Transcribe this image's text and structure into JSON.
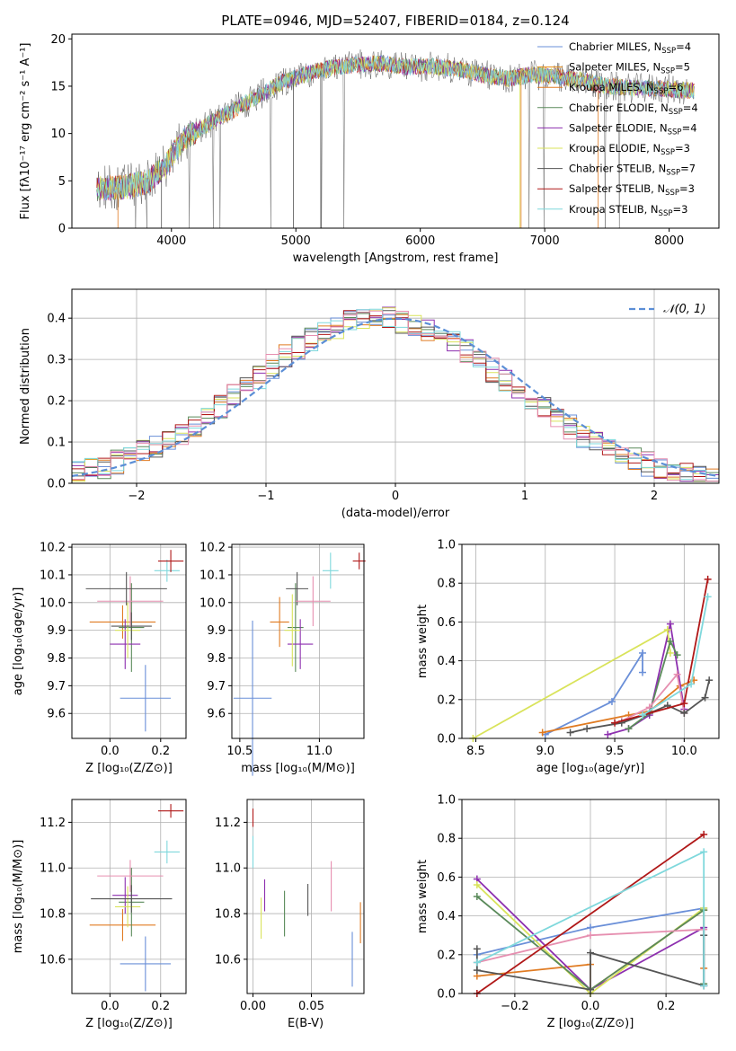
{
  "colors": {
    "Chabrier MILES": "#6a8fd8",
    "Salpeter MILES": "#e6870e",
    "Kroupa MILES": "#e07b22",
    "Chabrier ELODIE": "#5a8a5a",
    "Salpeter ELODIE": "#8d2faf",
    "Kroupa ELODIE": "#d9e35a",
    "Chabrier STELIB": "#555555",
    "Salpeter STELIB": "#b01818",
    "Kroupa STELIB": "#7fd8dc",
    "pink": "#e68fb0",
    "normal": "#5b8ed6"
  },
  "chart_data": [
    {
      "id": "spectrum",
      "type": "line",
      "title": "PLATE=0946, MJD=52407, FIBERID=0184, z=0.124",
      "xlabel": "wavelength [Angstrom, rest frame]",
      "ylabel": "Flux [fλ10⁻¹⁷ erg cm⁻² s⁻¹ A⁻¹]",
      "xlim": [
        3200,
        8400
      ],
      "ylim": [
        0,
        20.5
      ],
      "xticks": [
        4000,
        5000,
        6000,
        7000,
        8000
      ],
      "yticks": [
        0,
        5,
        10,
        15,
        20
      ],
      "grid": false,
      "legend_position": "top-right",
      "legend": [
        {
          "base": "Chabrier MILES, N",
          "sub": "SSP",
          "rest": "=4"
        },
        {
          "base": "Salpeter MILES, N",
          "sub": "SSP",
          "rest": "=5"
        },
        {
          "base": "Kroupa MILES, N",
          "sub": "SSP",
          "rest": "=6"
        },
        {
          "base": "Chabrier ELODIE, N",
          "sub": "SSP",
          "rest": "=4"
        },
        {
          "base": "Salpeter ELODIE, N",
          "sub": "SSP",
          "rest": "=4"
        },
        {
          "base": "Kroupa ELODIE, N",
          "sub": "SSP",
          "rest": "=3"
        },
        {
          "base": "Chabrier STELIB, N",
          "sub": "SSP",
          "rest": "=7"
        },
        {
          "base": "Salpeter STELIB, N",
          "sub": "SSP",
          "rest": "=3"
        },
        {
          "base": "Kroupa STELIB, N",
          "sub": "SSP",
          "rest": "=3"
        }
      ],
      "continuum": {
        "x": [
          3400,
          3600,
          3800,
          3950,
          4100,
          4300,
          4500,
          4700,
          4900,
          5100,
          5300,
          5500,
          5700,
          5900,
          6100,
          6300,
          6500,
          6700,
          6900,
          7100,
          7300,
          7500,
          7700,
          7900,
          8100,
          8200
        ],
        "y": [
          4.2,
          4.3,
          4.8,
          6.5,
          9.5,
          11.0,
          12.5,
          14.0,
          15.5,
          16.3,
          17.0,
          17.3,
          17.4,
          17.0,
          17.1,
          16.8,
          16.2,
          15.8,
          16.2,
          16.0,
          15.6,
          15.0,
          14.8,
          14.8,
          14.6,
          14.5
        ]
      }
    },
    {
      "id": "residuals",
      "type": "histogram",
      "xlabel": "(data-model)/error",
      "ylabel": "Normed distribution",
      "xlim": [
        -2.5,
        2.5
      ],
      "ylim": [
        0,
        0.47
      ],
      "xticks": [
        -2,
        -1,
        0,
        1,
        2
      ],
      "yticks": [
        0.0,
        0.1,
        0.2,
        0.3,
        0.4
      ],
      "grid": true,
      "legend": "𝒩(0, 1)",
      "legend_position": "top-right",
      "bin_width": 0.1
    },
    {
      "id": "age-vs-Z",
      "type": "errorbar",
      "xlabel": "Z [log₁₀(Z/Z⊙)]",
      "ylabel": "age  [log₁₀(age/yr)]",
      "xlim": [
        -0.15,
        0.3
      ],
      "ylim": [
        9.51,
        10.21
      ],
      "xticks": [
        0.0,
        0.2
      ],
      "yticks": [
        9.6,
        9.7,
        9.8,
        9.9,
        10.0,
        10.1,
        10.2
      ],
      "grid": true,
      "points": [
        {
          "c": "Chabrier MILES",
          "x": 0.14,
          "xe": 0.1,
          "y": 9.655,
          "ye": 0.12
        },
        {
          "c": "Kroupa MILES",
          "x": 0.05,
          "xe": 0.13,
          "y": 9.93,
          "ye": 0.06
        },
        {
          "c": "Chabrier ELODIE",
          "x": 0.085,
          "xe": 0.05,
          "y": 9.91,
          "ye": 0.16
        },
        {
          "c": "Salpeter ELODIE",
          "x": 0.06,
          "xe": 0.06,
          "y": 9.85,
          "ye": 0.09
        },
        {
          "c": "Kroupa ELODIE",
          "x": 0.07,
          "xe": 0.05,
          "y": 9.9,
          "ye": 0.1
        },
        {
          "c": "Chabrier STELIB",
          "x": 0.085,
          "xe": 0.08,
          "y": 9.915,
          "ye": 0.05
        },
        {
          "c": "pink",
          "x": 0.08,
          "xe": 0.13,
          "y": 10.005,
          "ye": 0.09
        },
        {
          "c": "Chabrier STELIB",
          "x": 0.065,
          "xe": 0.16,
          "y": 10.05,
          "ye": 0.06
        },
        {
          "c": "Kroupa STELIB",
          "x": 0.225,
          "xe": 0.05,
          "y": 10.115,
          "ye": 0.04
        },
        {
          "c": "Salpeter STELIB",
          "x": 0.24,
          "xe": 0.05,
          "y": 10.15,
          "ye": 0.04
        }
      ]
    },
    {
      "id": "age-vs-mass",
      "type": "errorbar",
      "xlabel": "mass [log₁₀(M/M⊙)]",
      "ylabel": "",
      "xlim": [
        10.45,
        11.28
      ],
      "ylim": [
        9.51,
        10.21
      ],
      "xticks": [
        10.5,
        11.0
      ],
      "yticks": [
        9.6,
        9.7,
        9.8,
        9.9,
        10.0,
        10.1,
        10.2
      ],
      "grid": true,
      "points": [
        {
          "c": "Chabrier MILES",
          "x": 10.58,
          "xe": 0.12,
          "y": 9.655,
          "ye": 0.28
        },
        {
          "c": "Kroupa MILES",
          "x": 10.75,
          "xe": 0.06,
          "y": 9.93,
          "ye": 0.09
        },
        {
          "c": "Chabrier ELODIE",
          "x": 10.85,
          "xe": 0.05,
          "y": 9.91,
          "ye": 0.16
        },
        {
          "c": "Salpeter ELODIE",
          "x": 10.88,
          "xe": 0.08,
          "y": 9.85,
          "ye": 0.09
        },
        {
          "c": "Kroupa ELODIE",
          "x": 10.83,
          "xe": 0.05,
          "y": 9.9,
          "ye": 0.13
        },
        {
          "c": "Chabrier STELIB",
          "x": 10.86,
          "xe": 0.07,
          "y": 10.05,
          "ye": 0.06
        },
        {
          "c": "pink",
          "x": 10.96,
          "xe": 0.11,
          "y": 10.005,
          "ye": 0.09
        },
        {
          "c": "Kroupa STELIB",
          "x": 11.07,
          "xe": 0.05,
          "y": 10.115,
          "ye": 0.065
        },
        {
          "c": "Salpeter STELIB",
          "x": 11.25,
          "xe": 0.04,
          "y": 10.15,
          "ye": 0.03
        }
      ]
    },
    {
      "id": "weight-vs-age",
      "type": "line",
      "xlabel": "age  [log₁₀(age/yr)]",
      "ylabel": "mass weight",
      "xlim": [
        8.4,
        10.25
      ],
      "ylim": [
        0.0,
        1.0
      ],
      "xticks": [
        8.5,
        9.0,
        9.5,
        10.0
      ],
      "yticks": [
        0.0,
        0.2,
        0.4,
        0.6,
        0.8,
        1.0
      ],
      "grid": true,
      "series": [
        {
          "c": "Chabrier MILES",
          "x": [
            9.0,
            9.48,
            9.7,
            9.7
          ],
          "y": [
            0.02,
            0.19,
            0.44,
            0.34
          ]
        },
        {
          "c": "Kroupa MILES",
          "x": [
            8.98,
            9.6,
            9.75,
            9.97,
            10.07
          ],
          "y": [
            0.03,
            0.12,
            0.14,
            0.27,
            0.3
          ]
        },
        {
          "c": "Salpeter ELODIE",
          "x": [
            9.45,
            9.6,
            9.75,
            9.9,
            10.0
          ],
          "y": [
            0.02,
            0.05,
            0.12,
            0.59,
            0.15
          ]
        },
        {
          "c": "Kroupa ELODIE",
          "x": [
            8.48,
            9.88,
            9.9
          ],
          "y": [
            0.0,
            0.56,
            0.44
          ]
        },
        {
          "c": "Chabrier ELODIE",
          "x": [
            9.6,
            9.75,
            9.9,
            9.95
          ],
          "y": [
            0.05,
            0.13,
            0.5,
            0.43
          ]
        },
        {
          "c": "pink",
          "x": [
            9.55,
            9.75,
            9.95,
            10.0
          ],
          "y": [
            0.09,
            0.16,
            0.33,
            0.13
          ]
        },
        {
          "c": "Chabrier STELIB",
          "x": [
            9.18,
            9.3,
            9.55,
            9.75,
            9.88,
            10.0,
            10.15,
            10.18
          ],
          "y": [
            0.03,
            0.05,
            0.08,
            0.13,
            0.17,
            0.13,
            0.21,
            0.3
          ]
        },
        {
          "c": "Salpeter STELIB",
          "x": [
            9.5,
            10.0,
            10.17
          ],
          "y": [
            0.08,
            0.18,
            0.82
          ]
        },
        {
          "c": "Kroupa STELIB",
          "x": [
            9.7,
            10.05,
            10.17
          ],
          "y": [
            0.12,
            0.28,
            0.73
          ]
        }
      ]
    },
    {
      "id": "mass-vs-Z",
      "type": "errorbar",
      "xlabel": "Z [log₁₀(Z/Z⊙)]",
      "ylabel": "mass [log₁₀(M/M⊙)]",
      "xlim": [
        -0.15,
        0.3
      ],
      "ylim": [
        10.45,
        11.3
      ],
      "xticks": [
        0.0,
        0.2
      ],
      "yticks": [
        10.6,
        10.8,
        11.0,
        11.2
      ],
      "grid": true,
      "points": [
        {
          "c": "Chabrier MILES",
          "x": 0.14,
          "xe": 0.1,
          "y": 10.58,
          "ye": 0.12
        },
        {
          "c": "Kroupa MILES",
          "x": 0.05,
          "xe": 0.13,
          "y": 10.75,
          "ye": 0.07
        },
        {
          "c": "Chabrier ELODIE",
          "x": 0.085,
          "xe": 0.05,
          "y": 10.85,
          "ye": 0.15
        },
        {
          "c": "Salpeter ELODIE",
          "x": 0.06,
          "xe": 0.05,
          "y": 10.88,
          "ye": 0.08
        },
        {
          "c": "Kroupa ELODIE",
          "x": 0.07,
          "xe": 0.05,
          "y": 10.83,
          "ye": 0.09
        },
        {
          "c": "Chabrier STELIB",
          "x": 0.085,
          "xe": 0.16,
          "y": 10.865,
          "ye": 0.06
        },
        {
          "c": "pink",
          "x": 0.08,
          "xe": 0.13,
          "y": 10.965,
          "ye": 0.07
        },
        {
          "c": "Kroupa STELIB",
          "x": 0.225,
          "xe": 0.05,
          "y": 11.07,
          "ye": 0.05
        },
        {
          "c": "Salpeter STELIB",
          "x": 0.24,
          "xe": 0.05,
          "y": 11.25,
          "ye": 0.03
        }
      ]
    },
    {
      "id": "mass-vs-ebv",
      "type": "errorbar",
      "xlabel": "E(B-V)",
      "ylabel": "",
      "xlim": [
        -0.005,
        0.095
      ],
      "ylim": [
        10.45,
        11.3
      ],
      "xticks": [
        0.0,
        0.05
      ],
      "yticks": [
        10.6,
        10.8,
        11.0,
        11.2
      ],
      "grid": true,
      "points": [
        {
          "c": "Chabrier MILES",
          "x": 0.085,
          "xe": 0,
          "y": 10.6,
          "ye": 0.12
        },
        {
          "c": "Kroupa MILES",
          "x": 0.092,
          "xe": 0,
          "y": 10.76,
          "ye": 0.09
        },
        {
          "c": "pink",
          "x": 0.067,
          "xe": 0,
          "y": 10.92,
          "ye": 0.11
        },
        {
          "c": "Chabrier STELIB",
          "x": 0.047,
          "xe": 0,
          "y": 10.86,
          "ye": 0.07
        },
        {
          "c": "Chabrier ELODIE",
          "x": 0.027,
          "xe": 0,
          "y": 10.8,
          "ye": 0.1
        },
        {
          "c": "Salpeter ELODIE",
          "x": 0.01,
          "xe": 0,
          "y": 10.88,
          "ye": 0.07
        },
        {
          "c": "Kroupa ELODIE",
          "x": 0.007,
          "xe": 0,
          "y": 10.78,
          "ye": 0.09
        },
        {
          "c": "Kroupa STELIB",
          "x": 0.0,
          "xe": 0,
          "y": 11.07,
          "ye": 0.07
        },
        {
          "c": "Salpeter STELIB",
          "x": 0.0,
          "xe": 0,
          "y": 11.22,
          "ye": 0.04
        }
      ]
    },
    {
      "id": "weight-vs-Z",
      "type": "line",
      "xlabel": "Z [log₁₀(Z/Z⊙)]",
      "ylabel": "mass weight",
      "xlim": [
        -0.34,
        0.34
      ],
      "ylim": [
        0.0,
        1.0
      ],
      "xticks": [
        -0.2,
        0.0,
        0.2
      ],
      "yticks": [
        0.0,
        0.2,
        0.4,
        0.6,
        0.8,
        1.0
      ],
      "grid": true,
      "series": [
        {
          "c": "Chabrier MILES",
          "x": [
            -0.3,
            0.0,
            0.3
          ],
          "y": [
            0.2,
            0.34,
            0.44
          ]
        },
        {
          "c": "Kroupa MILES",
          "x": [
            -0.3,
            0.0,
            0.0,
            0.3,
            0.3
          ],
          "y": [
            0.09,
            0.15,
            0.02,
            0.43,
            0.13
          ]
        },
        {
          "c": "Salpeter ELODIE",
          "x": [
            -0.3,
            0.0,
            0.3,
            0.3
          ],
          "y": [
            0.59,
            0.02,
            0.34,
            0.04
          ]
        },
        {
          "c": "Kroupa ELODIE",
          "x": [
            -0.3,
            0.0,
            0.3
          ],
          "y": [
            0.56,
            0.0,
            0.44
          ]
        },
        {
          "c": "Chabrier ELODIE",
          "x": [
            -0.3,
            0.0,
            0.3,
            0.3
          ],
          "y": [
            0.5,
            0.02,
            0.43,
            0.05
          ]
        },
        {
          "c": "pink",
          "x": [
            -0.3,
            0.0,
            0.3
          ],
          "y": [
            0.16,
            0.3,
            0.33
          ]
        },
        {
          "c": "Chabrier STELIB",
          "x": [
            -0.3,
            -0.3,
            0.0,
            0.0,
            0.3,
            0.3
          ],
          "y": [
            0.23,
            0.12,
            0.02,
            0.21,
            0.04,
            0.3
          ]
        },
        {
          "c": "Salpeter STELIB",
          "x": [
            -0.3,
            0.3
          ],
          "y": [
            0.0,
            0.82
          ]
        },
        {
          "c": "Kroupa STELIB",
          "x": [
            -0.3,
            0.3,
            0.3
          ],
          "y": [
            0.16,
            0.73,
            0.04
          ]
        }
      ]
    }
  ]
}
